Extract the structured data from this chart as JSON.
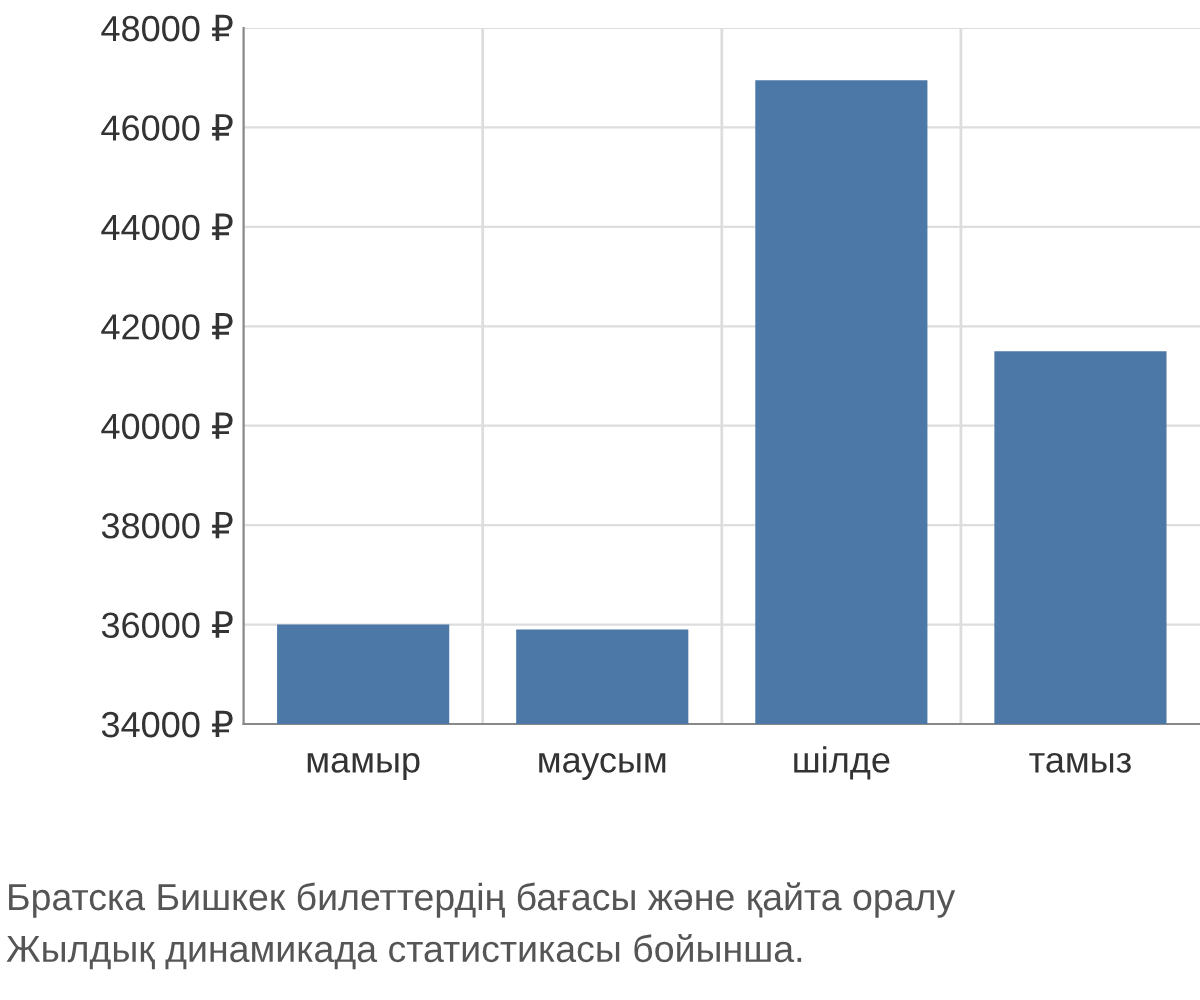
{
  "chart_data": {
    "type": "bar",
    "categories": [
      "мамыр",
      "маусым",
      "шілде",
      "тамыз"
    ],
    "values": [
      36000,
      35900,
      46950,
      41500
    ],
    "color": "#4c78a8",
    "ylim": [
      34000,
      48000
    ],
    "yticks": [
      {
        "value": 34000,
        "label": "34000 ₽"
      },
      {
        "value": 36000,
        "label": "36000 ₽"
      },
      {
        "value": 38000,
        "label": "38000 ₽"
      },
      {
        "value": 40000,
        "label": "40000 ₽"
      },
      {
        "value": 42000,
        "label": "42000 ₽"
      },
      {
        "value": 44000,
        "label": "44000 ₽"
      },
      {
        "value": 46000,
        "label": "46000 ₽"
      },
      {
        "value": 48000,
        "label": "48000 ₽"
      }
    ],
    "grid": true,
    "annotations": [
      "Братска Бишкек билеттердің бағасы және қайта оралу",
      "Жылдық динамикада статистикасы бойынша."
    ]
  }
}
